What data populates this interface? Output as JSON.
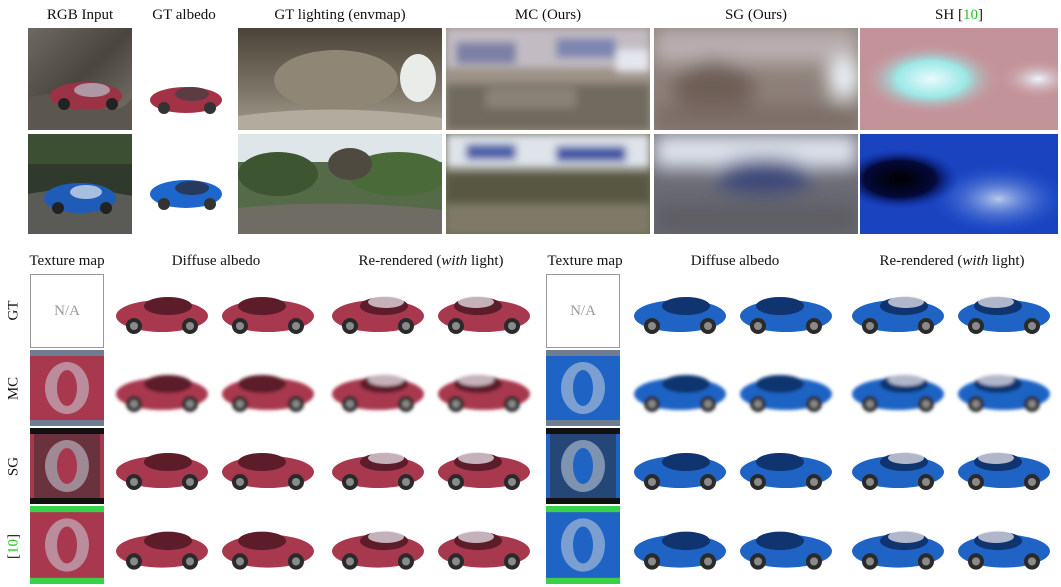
{
  "top_headers": {
    "rgb_input": "RGB Input",
    "gt_albedo": "GT albedo",
    "gt_lighting": "GT lighting (envmap)",
    "mc_ours": "MC (Ours)",
    "sg_ours": "SG (Ours)",
    "sh_prefix": "SH [",
    "sh_cite": "10",
    "sh_suffix": "]"
  },
  "bottom_headers": {
    "texture_map": "Texture map",
    "diffuse_albedo": "Diffuse albedo",
    "rerendered_prefix": "Re-rendered (",
    "rerendered_italic": "with",
    "rerendered_suffix": " light)"
  },
  "row_labels": {
    "gt": "GT",
    "mc": "MC",
    "sg": "SG",
    "cite_open": "[",
    "cite": "10",
    "cite_close": "]"
  },
  "na_text": "N/A",
  "colors": {
    "red_car": "#a8384e",
    "blue_car": "#1f63c4",
    "cite_green": "#22c322"
  }
}
